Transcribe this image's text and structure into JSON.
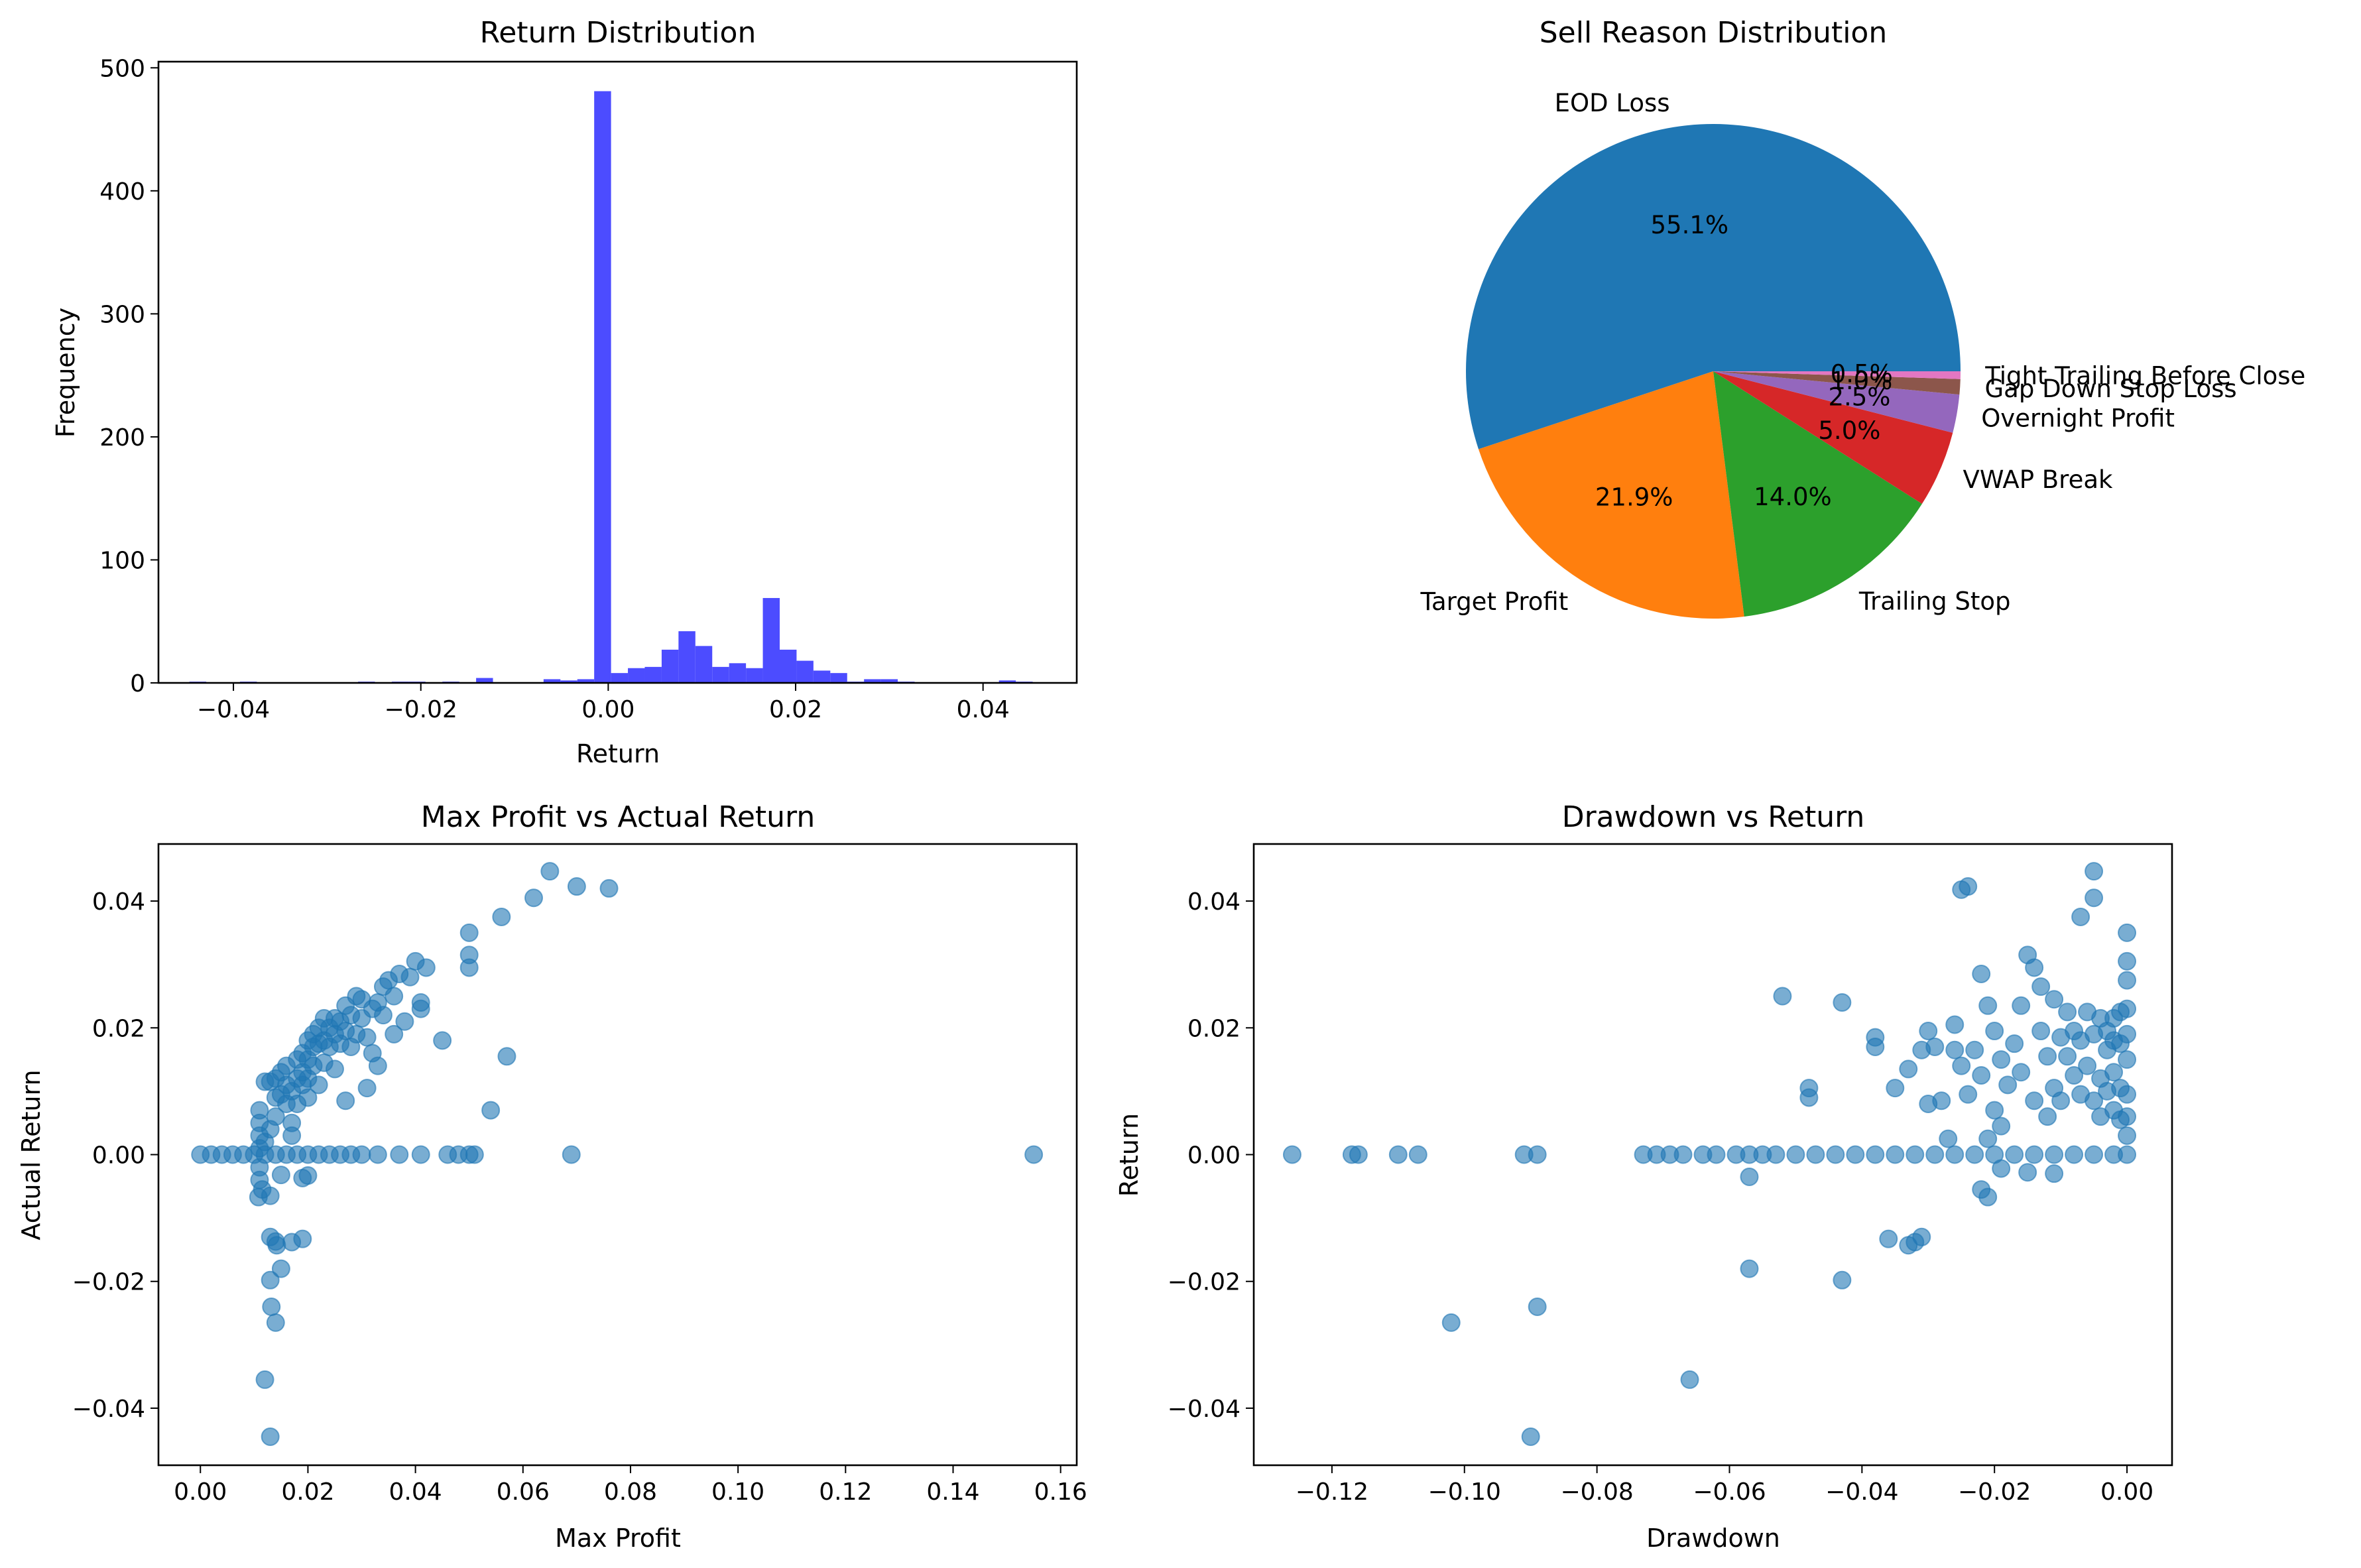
{
  "colors": {
    "histogram": "#4c4cff",
    "scatter": "#1f77b4",
    "pie": [
      "#1f77b4",
      "#ff7f0e",
      "#2ca02c",
      "#d62728",
      "#9467bd",
      "#8c564b",
      "#e377c2"
    ]
  },
  "chart_data": [
    {
      "type": "bar",
      "title": "Return Distribution",
      "xlabel": "Return",
      "ylabel": "Frequency",
      "xlim": [
        -0.048,
        0.05
      ],
      "ylim": [
        0,
        505
      ],
      "xticks": [
        -0.04,
        -0.02,
        0.0,
        0.02,
        0.04
      ],
      "xtick_labels": [
        "−0.04",
        "−0.02",
        "0.00",
        "0.02",
        "0.04"
      ],
      "yticks": [
        0,
        100,
        200,
        300,
        400,
        500
      ],
      "ytick_labels": [
        "0",
        "100",
        "200",
        "300",
        "400",
        "500"
      ],
      "bin_edges": [
        -0.0447,
        -0.0429,
        -0.0411,
        -0.0393,
        -0.0375,
        -0.0357,
        -0.0339,
        -0.0321,
        -0.0303,
        -0.0285,
        -0.0267,
        -0.0249,
        -0.0231,
        -0.0213,
        -0.0195,
        -0.0177,
        -0.0159,
        -0.0141,
        -0.0123,
        -0.0105,
        -0.0087,
        -0.0069,
        -0.0051,
        -0.0033,
        -0.0015,
        0.0003,
        0.0021,
        0.0039,
        0.0057,
        0.0075,
        0.0093,
        0.0111,
        0.0129,
        0.0147,
        0.0165,
        0.0183,
        0.0201,
        0.0219,
        0.0237,
        0.0255,
        0.0273,
        0.0291,
        0.0309,
        0.0327,
        0.0345,
        0.0363,
        0.0381,
        0.0399,
        0.0417,
        0.0435,
        0.0453
      ],
      "counts": [
        1,
        0,
        0,
        1,
        0,
        0,
        0,
        0,
        0,
        0,
        1,
        0,
        1,
        1,
        0,
        1,
        0,
        4,
        0,
        0,
        0,
        3,
        2,
        3,
        481,
        8,
        12,
        13,
        27,
        42,
        30,
        13,
        16,
        12,
        69,
        27,
        18,
        10,
        8,
        1,
        3,
        3,
        1,
        0,
        0,
        0,
        0,
        0,
        2,
        1
      ]
    },
    {
      "type": "pie",
      "title": "Sell Reason Distribution",
      "slices": [
        {
          "label": "EOD Loss",
          "value": 55.1,
          "pct": "55.1%"
        },
        {
          "label": "Target Profit",
          "value": 21.9,
          "pct": "21.9%"
        },
        {
          "label": "Trailing Stop",
          "value": 14.0,
          "pct": "14.0%"
        },
        {
          "label": "VWAP Break",
          "value": 5.0,
          "pct": "5.0%"
        },
        {
          "label": "Overnight Profit",
          "value": 2.5,
          "pct": "2.5%"
        },
        {
          "label": "Gap Down Stop Loss",
          "value": 1.0,
          "pct": "1.0%"
        },
        {
          "label": "Tight Trailing Before Close",
          "value": 0.5,
          "pct": "0.5%"
        }
      ]
    },
    {
      "type": "scatter",
      "title": "Max Profit vs Actual Return",
      "xlabel": "Max Profit",
      "ylabel": "Actual Return",
      "xlim": [
        -0.0078,
        0.163
      ],
      "ylim": [
        -0.049,
        0.049
      ],
      "xticks": [
        0.0,
        0.02,
        0.04,
        0.06,
        0.08,
        0.1,
        0.12,
        0.14,
        0.16
      ],
      "xtick_labels": [
        "0.00",
        "0.02",
        "0.04",
        "0.06",
        "0.08",
        "0.10",
        "0.12",
        "0.14",
        "0.16"
      ],
      "yticks": [
        -0.04,
        -0.02,
        0.0,
        0.02,
        0.04
      ],
      "ytick_labels": [
        "−0.04",
        "−0.02",
        "0.00",
        "0.02",
        "0.04"
      ],
      "points": [
        [
          0.0,
          0.0
        ],
        [
          0.002,
          0.0
        ],
        [
          0.004,
          0.0
        ],
        [
          0.006,
          0.0
        ],
        [
          0.008,
          0.0
        ],
        [
          0.01,
          0.0
        ],
        [
          0.012,
          0.0
        ],
        [
          0.014,
          0.0
        ],
        [
          0.016,
          0.0
        ],
        [
          0.018,
          0.0
        ],
        [
          0.02,
          0.0
        ],
        [
          0.022,
          0.0
        ],
        [
          0.024,
          0.0
        ],
        [
          0.026,
          0.0
        ],
        [
          0.028,
          0.0
        ],
        [
          0.03,
          0.0
        ],
        [
          0.033,
          0.0
        ],
        [
          0.037,
          0.0
        ],
        [
          0.041,
          0.0
        ],
        [
          0.046,
          0.0
        ],
        [
          0.048,
          0.0
        ],
        [
          0.05,
          0.0
        ],
        [
          0.051,
          0.0
        ],
        [
          0.069,
          0.0
        ],
        [
          0.155,
          0.0
        ],
        [
          0.011,
          0.001
        ],
        [
          0.011,
          0.003
        ],
        [
          0.011,
          0.005
        ],
        [
          0.011,
          0.007
        ],
        [
          0.012,
          0.0115
        ],
        [
          0.013,
          0.0115
        ],
        [
          0.013,
          0.004
        ],
        [
          0.012,
          0.002
        ],
        [
          0.011,
          -0.002
        ],
        [
          0.011,
          -0.004
        ],
        [
          0.014,
          0.006
        ],
        [
          0.014,
          0.009
        ],
        [
          0.014,
          0.012
        ],
        [
          0.015,
          0.0095
        ],
        [
          0.015,
          0.013
        ],
        [
          0.016,
          0.011
        ],
        [
          0.016,
          0.014
        ],
        [
          0.016,
          0.008
        ],
        [
          0.017,
          0.01
        ],
        [
          0.017,
          0.005
        ],
        [
          0.017,
          0.003
        ],
        [
          0.018,
          0.012
        ],
        [
          0.018,
          0.015
        ],
        [
          0.018,
          0.008
        ],
        [
          0.019,
          0.016
        ],
        [
          0.019,
          0.013
        ],
        [
          0.019,
          0.011
        ],
        [
          0.02,
          0.018
        ],
        [
          0.02,
          0.015
        ],
        [
          0.02,
          0.012
        ],
        [
          0.02,
          0.009
        ],
        [
          0.021,
          0.019
        ],
        [
          0.021,
          0.017
        ],
        [
          0.021,
          0.014
        ],
        [
          0.022,
          0.02
        ],
        [
          0.022,
          0.0175
        ],
        [
          0.022,
          0.011
        ],
        [
          0.023,
          0.0215
        ],
        [
          0.023,
          0.018
        ],
        [
          0.023,
          0.0145
        ],
        [
          0.024,
          0.02
        ],
        [
          0.024,
          0.017
        ],
        [
          0.025,
          0.0215
        ],
        [
          0.025,
          0.019
        ],
        [
          0.025,
          0.0135
        ],
        [
          0.026,
          0.021
        ],
        [
          0.026,
          0.0175
        ],
        [
          0.027,
          0.0195
        ],
        [
          0.027,
          0.0235
        ],
        [
          0.027,
          0.0085
        ],
        [
          0.028,
          0.022
        ],
        [
          0.028,
          0.017
        ],
        [
          0.029,
          0.025
        ],
        [
          0.029,
          0.019
        ],
        [
          0.03,
          0.0245
        ],
        [
          0.03,
          0.0215
        ],
        [
          0.031,
          0.0185
        ],
        [
          0.031,
          0.0105
        ],
        [
          0.032,
          0.023
        ],
        [
          0.032,
          0.016
        ],
        [
          0.033,
          0.024
        ],
        [
          0.033,
          0.014
        ],
        [
          0.034,
          0.0265
        ],
        [
          0.034,
          0.022
        ],
        [
          0.035,
          0.0275
        ],
        [
          0.036,
          0.025
        ],
        [
          0.036,
          0.019
        ],
        [
          0.037,
          0.0285
        ],
        [
          0.038,
          0.021
        ],
        [
          0.039,
          0.028
        ],
        [
          0.04,
          0.0305
        ],
        [
          0.041,
          0.023
        ],
        [
          0.041,
          0.024
        ],
        [
          0.042,
          0.0295
        ],
        [
          0.045,
          0.018
        ],
        [
          0.05,
          0.035
        ],
        [
          0.05,
          0.0315
        ],
        [
          0.05,
          0.0295
        ],
        [
          0.054,
          0.007
        ],
        [
          0.056,
          0.0375
        ],
        [
          0.057,
          0.0155
        ],
        [
          0.062,
          0.0405
        ],
        [
          0.065,
          0.0447
        ],
        [
          0.07,
          0.0423
        ],
        [
          0.076,
          0.042
        ],
        [
          0.0108,
          -0.0067
        ],
        [
          0.0115,
          -0.0055
        ],
        [
          0.013,
          -0.0065
        ],
        [
          0.015,
          -0.0032
        ],
        [
          0.019,
          -0.0037
        ],
        [
          0.02,
          -0.0033
        ],
        [
          0.013,
          -0.013
        ],
        [
          0.014,
          -0.0137
        ],
        [
          0.0142,
          -0.0143
        ],
        [
          0.017,
          -0.0138
        ],
        [
          0.019,
          -0.0133
        ],
        [
          0.013,
          -0.0198
        ],
        [
          0.015,
          -0.018
        ],
        [
          0.0132,
          -0.024
        ],
        [
          0.014,
          -0.0265
        ],
        [
          0.012,
          -0.0355
        ],
        [
          0.013,
          -0.0445
        ]
      ]
    },
    {
      "type": "scatter",
      "title": "Drawdown vs Return",
      "xlabel": "Drawdown",
      "ylabel": "Return",
      "xlim": [
        -0.1318,
        0.0068
      ],
      "ylim": [
        -0.049,
        0.049
      ],
      "xticks": [
        -0.12,
        -0.1,
        -0.08,
        -0.06,
        -0.04,
        -0.02,
        0.0
      ],
      "xtick_labels": [
        "−0.12",
        "−0.10",
        "−0.08",
        "−0.06",
        "−0.04",
        "−0.02",
        "0.00"
      ],
      "yticks": [
        -0.04,
        -0.02,
        0.0,
        0.02,
        0.04
      ],
      "ytick_labels": [
        "−0.04",
        "−0.02",
        "0.00",
        "0.02",
        "0.04"
      ],
      "points": [
        [
          -0.126,
          0.0
        ],
        [
          -0.117,
          0.0
        ],
        [
          -0.116,
          0.0
        ],
        [
          -0.11,
          0.0
        ],
        [
          -0.107,
          0.0
        ],
        [
          -0.091,
          0.0
        ],
        [
          -0.089,
          0.0
        ],
        [
          -0.073,
          0.0
        ],
        [
          -0.071,
          0.0
        ],
        [
          -0.069,
          0.0
        ],
        [
          -0.067,
          0.0
        ],
        [
          -0.064,
          0.0
        ],
        [
          -0.062,
          0.0
        ],
        [
          -0.059,
          0.0
        ],
        [
          -0.057,
          0.0
        ],
        [
          -0.055,
          0.0
        ],
        [
          -0.053,
          0.0
        ],
        [
          -0.05,
          0.0
        ],
        [
          -0.047,
          0.0
        ],
        [
          -0.044,
          0.0
        ],
        [
          -0.041,
          0.0
        ],
        [
          -0.038,
          0.0
        ],
        [
          -0.035,
          0.0
        ],
        [
          -0.032,
          0.0
        ],
        [
          -0.029,
          0.0
        ],
        [
          -0.026,
          0.0
        ],
        [
          -0.023,
          0.0
        ],
        [
          -0.02,
          0.0
        ],
        [
          -0.017,
          0.0
        ],
        [
          -0.014,
          0.0
        ],
        [
          -0.011,
          0.0
        ],
        [
          -0.008,
          0.0
        ],
        [
          -0.005,
          0.0
        ],
        [
          -0.002,
          0.0
        ],
        [
          0.0,
          0.0
        ],
        [
          -0.052,
          0.025
        ],
        [
          -0.048,
          0.0105
        ],
        [
          -0.048,
          0.009
        ],
        [
          -0.043,
          0.024
        ],
        [
          -0.038,
          0.0185
        ],
        [
          -0.038,
          0.017
        ],
        [
          -0.031,
          0.0165
        ],
        [
          -0.03,
          0.0195
        ],
        [
          -0.029,
          0.017
        ],
        [
          -0.028,
          0.0085
        ],
        [
          -0.026,
          0.0165
        ],
        [
          -0.026,
          0.0205
        ],
        [
          -0.025,
          0.014
        ],
        [
          -0.024,
          0.0095
        ],
        [
          -0.025,
          0.0418
        ],
        [
          -0.024,
          0.0423
        ],
        [
          -0.022,
          0.0285
        ],
        [
          -0.021,
          0.0235
        ],
        [
          -0.02,
          0.0195
        ],
        [
          -0.019,
          0.015
        ],
        [
          -0.018,
          0.011
        ],
        [
          -0.017,
          0.0175
        ],
        [
          -0.016,
          0.0235
        ],
        [
          -0.015,
          0.0315
        ],
        [
          -0.014,
          0.0295
        ],
        [
          -0.013,
          0.0265
        ],
        [
          -0.013,
          0.0195
        ],
        [
          -0.012,
          0.0155
        ],
        [
          -0.011,
          0.0245
        ],
        [
          -0.011,
          0.0105
        ],
        [
          -0.01,
          0.0185
        ],
        [
          -0.01,
          0.0085
        ],
        [
          -0.009,
          0.0225
        ],
        [
          -0.009,
          0.0155
        ],
        [
          -0.008,
          0.0195
        ],
        [
          -0.008,
          0.0125
        ],
        [
          -0.007,
          0.018
        ],
        [
          -0.007,
          0.0095
        ],
        [
          -0.007,
          0.0375
        ],
        [
          -0.006,
          0.0225
        ],
        [
          -0.006,
          0.014
        ],
        [
          -0.005,
          0.0447
        ],
        [
          -0.005,
          0.0405
        ],
        [
          -0.005,
          0.019
        ],
        [
          -0.005,
          0.0085
        ],
        [
          -0.004,
          0.0215
        ],
        [
          -0.004,
          0.012
        ],
        [
          -0.004,
          0.006
        ],
        [
          -0.003,
          0.0195
        ],
        [
          -0.003,
          0.0165
        ],
        [
          -0.003,
          0.01
        ],
        [
          -0.002,
          0.0215
        ],
        [
          -0.002,
          0.018
        ],
        [
          -0.002,
          0.013
        ],
        [
          -0.002,
          0.007
        ],
        [
          -0.001,
          0.0225
        ],
        [
          -0.001,
          0.0175
        ],
        [
          -0.001,
          0.0105
        ],
        [
          -0.001,
          0.0055
        ],
        [
          0.0,
          0.035
        ],
        [
          0.0,
          0.0305
        ],
        [
          0.0,
          0.0275
        ],
        [
          0.0,
          0.023
        ],
        [
          0.0,
          0.019
        ],
        [
          0.0,
          0.015
        ],
        [
          0.0,
          0.0095
        ],
        [
          0.0,
          0.006
        ],
        [
          0.0,
          0.003
        ],
        [
          -0.012,
          0.006
        ],
        [
          -0.014,
          0.0085
        ],
        [
          -0.016,
          0.013
        ],
        [
          -0.019,
          0.0045
        ],
        [
          -0.02,
          0.007
        ],
        [
          -0.021,
          0.0025
        ],
        [
          -0.022,
          0.0125
        ],
        [
          -0.023,
          0.0165
        ],
        [
          -0.027,
          0.0025
        ],
        [
          -0.03,
          0.008
        ],
        [
          -0.033,
          0.0135
        ],
        [
          -0.035,
          0.0105
        ],
        [
          -0.022,
          -0.0055
        ],
        [
          -0.021,
          -0.0067
        ],
        [
          -0.019,
          -0.0022
        ],
        [
          -0.015,
          -0.0028
        ],
        [
          -0.011,
          -0.003
        ],
        [
          -0.057,
          -0.0035
        ],
        [
          -0.031,
          -0.013
        ],
        [
          -0.032,
          -0.0138
        ],
        [
          -0.033,
          -0.0143
        ],
        [
          -0.036,
          -0.0133
        ],
        [
          -0.057,
          -0.018
        ],
        [
          -0.043,
          -0.0198
        ],
        [
          -0.089,
          -0.024
        ],
        [
          -0.102,
          -0.0265
        ],
        [
          -0.066,
          -0.0355
        ],
        [
          -0.09,
          -0.0445
        ]
      ]
    }
  ]
}
